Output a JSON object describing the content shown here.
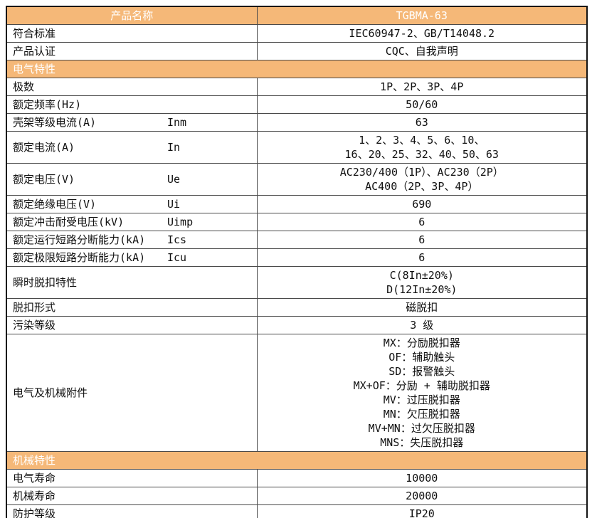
{
  "colors": {
    "accent_orange": "#F5B878",
    "header_text": "#ffffff",
    "body_text": "#101010",
    "border_inner": "#4a4a4a",
    "border_outer": "#141414"
  },
  "table": {
    "rows": [
      {
        "type": "header",
        "label": "产品名称",
        "value": "TGBMA-63"
      },
      {
        "type": "data",
        "label": "符合标准",
        "value": "IEC60947-2、GB/T14048.2"
      },
      {
        "type": "data",
        "label": "产品认证",
        "value": "CQC、自我声明"
      },
      {
        "type": "section",
        "label": "电气特性"
      },
      {
        "type": "data",
        "label": "极数",
        "value": "1P、2P、3P、4P"
      },
      {
        "type": "data",
        "label": "额定频率(Hz)",
        "value": "50/60"
      },
      {
        "type": "data",
        "label": "壳架等级电流(A)",
        "symbol": "Inm",
        "value": "63"
      },
      {
        "type": "data",
        "label": "额定电流(A)",
        "symbol": "In",
        "value": "1、2、3、4、5、6、10、\n16、20、25、32、40、50、63"
      },
      {
        "type": "data",
        "label": "额定电压(V)",
        "symbol": "Ue",
        "value": "AC230/400（1P）、AC230（2P）\nAC400（2P、3P、4P）"
      },
      {
        "type": "data",
        "label": "额定绝缘电压(V)",
        "symbol": "Ui",
        "value": "690"
      },
      {
        "type": "data",
        "label": "额定冲击耐受电压(kV)",
        "symbol": "Uimp",
        "value": "6"
      },
      {
        "type": "data",
        "label": "额定运行短路分断能力(kA)",
        "symbol": "Ics",
        "value": "6"
      },
      {
        "type": "data",
        "label": "额定极限短路分断能力(kA)",
        "symbol": "Icu",
        "value": "6"
      },
      {
        "type": "data",
        "label": "瞬时脱扣特性",
        "value": "C(8In±20%)\nD(12In±20%)"
      },
      {
        "type": "data",
        "label": "脱扣形式",
        "value": "磁脱扣"
      },
      {
        "type": "data",
        "label": "污染等级",
        "value": "3 级"
      },
      {
        "type": "data",
        "label": "电气及机械附件",
        "value": "MX：分励脱扣器\nOF：辅助触头\nSD：报警触头\nMX+OF：分励 + 辅助脱扣器\nMV：过压脱扣器\nMN：欠压脱扣器\nMV+MN：过欠压脱扣器\nMNS：失压脱扣器"
      },
      {
        "type": "section",
        "label": "机械特性"
      },
      {
        "type": "data",
        "label": "电气寿命",
        "value": "10000"
      },
      {
        "type": "data",
        "label": "机械寿命",
        "value": "20000"
      },
      {
        "type": "data",
        "label": "防护等级",
        "value": "IP20"
      }
    ]
  }
}
